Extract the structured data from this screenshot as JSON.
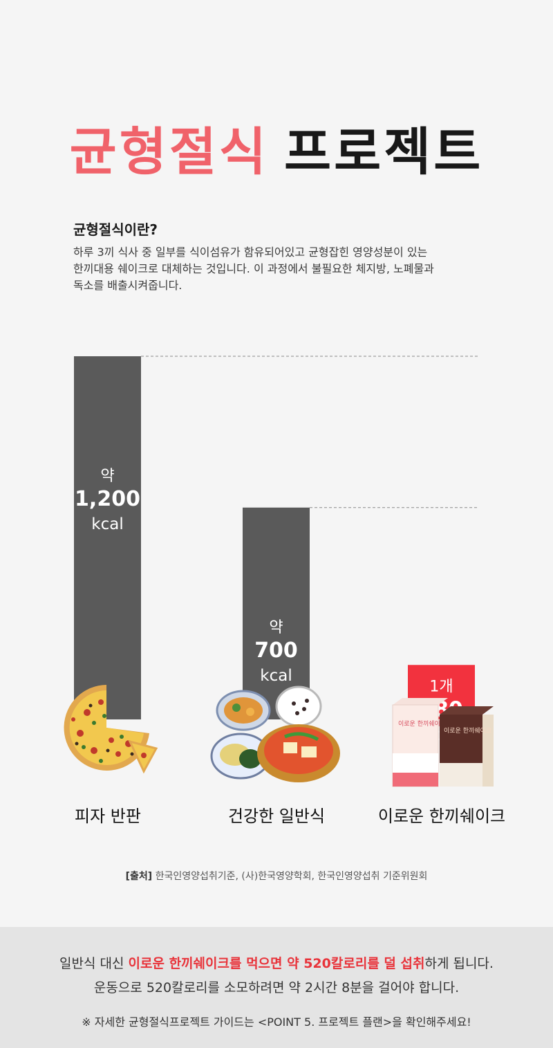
{
  "header": {
    "title_accent": "균형절식",
    "title_main": "프로젝트"
  },
  "intro": {
    "heading": "균형절식이란?",
    "lines": [
      "하루 3끼 식사 중 일부를 식이섬유가 함유되어있고 균형잡힌 영양성분이 있는",
      "한끼대용 쉐이크로 대체하는 것입니다. 이 과정에서 불필요한 체지방, 노폐물과",
      "독소를 배출시켜줍니다."
    ]
  },
  "chart_data": {
    "type": "bar",
    "unit": "kcal",
    "categories": [
      "피자 반판",
      "건강한 일반식",
      "이로운 한끼쉐이크"
    ],
    "values": [
      1200,
      700,
      180
    ],
    "bar_labels": [
      {
        "prefix": "약",
        "value": "1,200",
        "unit": "kcal"
      },
      {
        "prefix": "약",
        "value": "700",
        "unit": "kcal"
      },
      {
        "prefix": "1개",
        "value": "180",
        "unit": "kcal"
      }
    ],
    "colors": [
      "#5a5a5a",
      "#5a5a5a",
      "#f2323e"
    ],
    "grid_lines": "dashed reference lines at top of each bar",
    "ylim": [
      0,
      1200
    ]
  },
  "items": {
    "pizza": "피자 반판",
    "meal": "건강한 일반식",
    "shake": "이로운 한끼쉐이크"
  },
  "source": {
    "label": "[출처]",
    "text": "한국인영양섭취기준, (사)한국영양학회, 한국인영양섭취 기준위원회"
  },
  "footer": {
    "line1_pre": "일반식 대신 ",
    "line1_highlight": "이로운 한끼쉐이크를 먹으면 약 520칼로리를 덜 섭취",
    "line1_post": "하게 됩니다.",
    "line2": "운동으로 520칼로리를 소모하려면 약 2시간 8분을 걸어야 합니다.",
    "note": "※ 자세한 균형절식프로젝트 가이드는 <POINT 5. 프로젝트 플랜>을 확인해주세요!"
  },
  "colors": {
    "accent": "#f0626a",
    "highlight_red": "#e8333a",
    "bar_gray": "#5a5a5a",
    "bar_red": "#f2323e",
    "footer_bg": "#e4e4e4"
  },
  "product_box_text": {
    "box1": "이로운 한끼쉐이크",
    "box2": "이로운 한끼쉐이크"
  }
}
